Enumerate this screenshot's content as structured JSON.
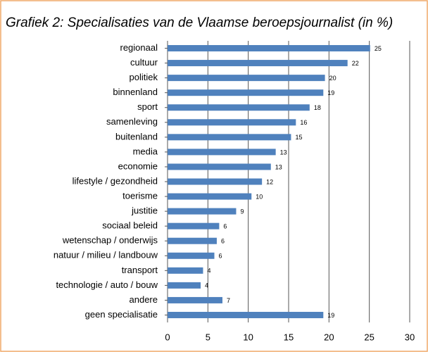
{
  "chart_data": {
    "type": "bar",
    "orientation": "horizontal",
    "title": "Grafiek 2: Specialisaties van de Vlaamse beroepsjournalist (in %)",
    "categories": [
      "regionaal",
      "cultuur",
      "politiek",
      "binnenland",
      "sport",
      "samenleving",
      "buitenland",
      "media",
      "economie",
      "lifestyle / gezondheid",
      "toerisme",
      "justitie",
      "sociaal beleid",
      "wetenschap / onderwijs",
      "natuur / milieu / landbouw",
      "transport",
      "technologie / auto / bouw",
      "andere",
      "geen specialisatie"
    ],
    "values": [
      25.1,
      22.3,
      19.5,
      19.3,
      17.6,
      15.9,
      15.3,
      13.4,
      12.8,
      11.7,
      10.4,
      8.5,
      6.4,
      6.1,
      5.8,
      4.4,
      4.1,
      6.8,
      19.3
    ],
    "value_labels": [
      "25",
      "22",
      "20",
      "19",
      "18",
      "16",
      "15",
      "13",
      "13",
      "12",
      "10",
      "9",
      "6",
      "6",
      "6",
      "4",
      "4",
      "7",
      "19"
    ],
    "color": "#4f81bd",
    "xlim": [
      0,
      30
    ],
    "xticks": [
      0,
      5,
      10,
      15,
      20,
      25,
      30
    ],
    "grid": true
  }
}
